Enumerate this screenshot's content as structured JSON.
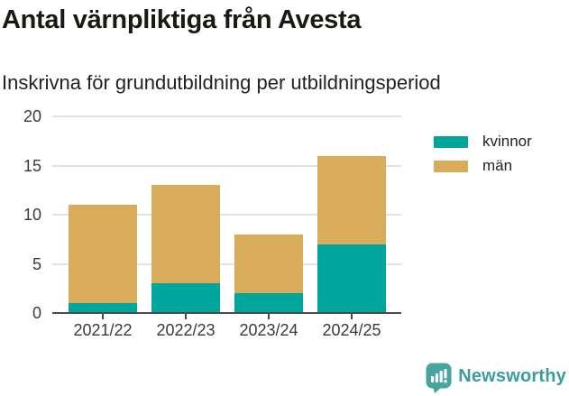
{
  "chart": {
    "title": "Antal värnpliktiga från Avesta",
    "subtitle": "Inskrivna för grundutbildning per utbildningsperiod"
  },
  "chart_data": {
    "type": "bar",
    "stacked": true,
    "title": "Antal värnpliktiga från Avesta",
    "subtitle": "Inskrivna för grundutbildning per utbildningsperiod",
    "categories": [
      "2021/22",
      "2022/23",
      "2023/24",
      "2024/25"
    ],
    "series": [
      {
        "name": "kvinnor",
        "color": "#00a69b",
        "values": [
          1,
          3,
          2,
          7
        ]
      },
      {
        "name": "män",
        "color": "#d9ac5b",
        "values": [
          10,
          10,
          6,
          9
        ]
      }
    ],
    "totals": [
      11,
      13,
      8,
      16
    ],
    "xlabel": "",
    "ylabel": "",
    "ylim": [
      0,
      20
    ],
    "yticks": [
      0,
      5,
      10,
      15,
      20
    ],
    "grid": true,
    "legend_position": "right"
  },
  "branding": {
    "logo_text": "Newsworthy",
    "logo_color": "#46a5a0",
    "logo_text_color": "#3b9e9a"
  },
  "colors": {
    "kvinnor": "#00a69b",
    "man": "#d9ac5b",
    "gridline": "#e2e2e2",
    "axis": "#4a4a4a",
    "title_text": "#1a1a14",
    "label_text": "#3a3a3a"
  }
}
